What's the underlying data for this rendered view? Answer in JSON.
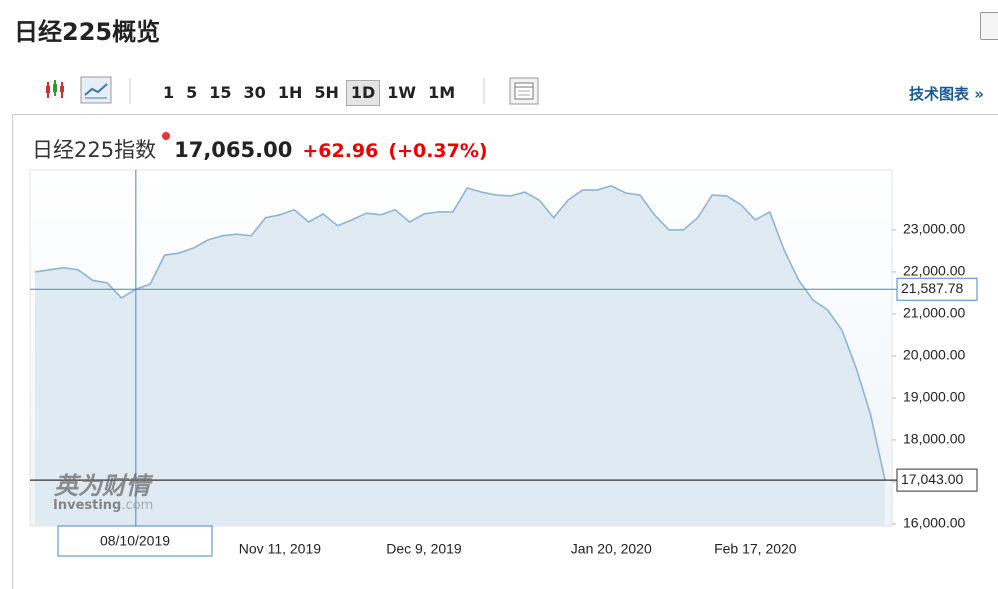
{
  "header": {
    "title": "日经225概览"
  },
  "toolbar": {
    "intervals": [
      "1",
      "5",
      "15",
      "30",
      "1H",
      "5H",
      "1D",
      "1W",
      "1M"
    ],
    "selected_interval": "1D",
    "link": "技术图表 »"
  },
  "quote": {
    "name": "日经225指数",
    "price": "17,065.00",
    "change": "+62.96",
    "change_percent": "(+0.37%)"
  },
  "watermark": {
    "brand": "英为财情",
    "site": "Investing",
    "domain": ".com"
  },
  "chart_data": {
    "type": "area",
    "categories": [
      null,
      null,
      null,
      null,
      null,
      null,
      null,
      null,
      null,
      null,
      null,
      null,
      null,
      null,
      null,
      null,
      null,
      "Nov 11, 2019",
      null,
      null,
      null,
      null,
      null,
      null,
      null,
      null,
      null,
      "Dec 9, 2019",
      null,
      null,
      null,
      null,
      null,
      null,
      null,
      null,
      null,
      null,
      null,
      null,
      "Jan 20, 2020",
      null,
      null,
      null,
      null,
      null,
      null,
      null,
      null,
      null,
      "Feb 17, 2020",
      null,
      null,
      null,
      null,
      null,
      null,
      null,
      null,
      null
    ],
    "values": [
      22000,
      22050,
      22100,
      22050,
      21800,
      21740,
      21380,
      21590,
      21710,
      22400,
      22450,
      22570,
      22760,
      22860,
      22900,
      22860,
      23290,
      23360,
      23480,
      23190,
      23380,
      23100,
      23240,
      23400,
      23360,
      23480,
      23190,
      23380,
      23430,
      23430,
      24000,
      23900,
      23830,
      23810,
      23900,
      23710,
      23290,
      23710,
      23950,
      23950,
      24050,
      23880,
      23830,
      23360,
      23000,
      23000,
      23290,
      23830,
      23810,
      23600,
      23240,
      23430,
      22520,
      21810,
      21330,
      21100,
      20620,
      19710,
      18600,
      17043
    ],
    "color": "#8fb4d4",
    "fill_color": "#dfeaf3",
    "ylim": [
      15950,
      24380
    ],
    "yticks": [
      {
        "value": 16000,
        "label": "16,000.00"
      },
      {
        "value": 17000,
        "label": "17,000.00"
      },
      {
        "value": 18000,
        "label": "18,000.00"
      },
      {
        "value": 19000,
        "label": "19,000.00"
      },
      {
        "value": 20000,
        "label": "20,000.00"
      },
      {
        "value": 21000,
        "label": "21,000.00"
      },
      {
        "value": 22000,
        "label": "22,000.00"
      },
      {
        "value": 23000,
        "label": "23,000.00"
      }
    ],
    "crosshair": {
      "category_index": 7,
      "x_label": "08/10/2019",
      "value": 21587.78,
      "value_label": "21,587.78"
    },
    "last_price": {
      "value": 17043,
      "label": "17,043.00"
    }
  }
}
